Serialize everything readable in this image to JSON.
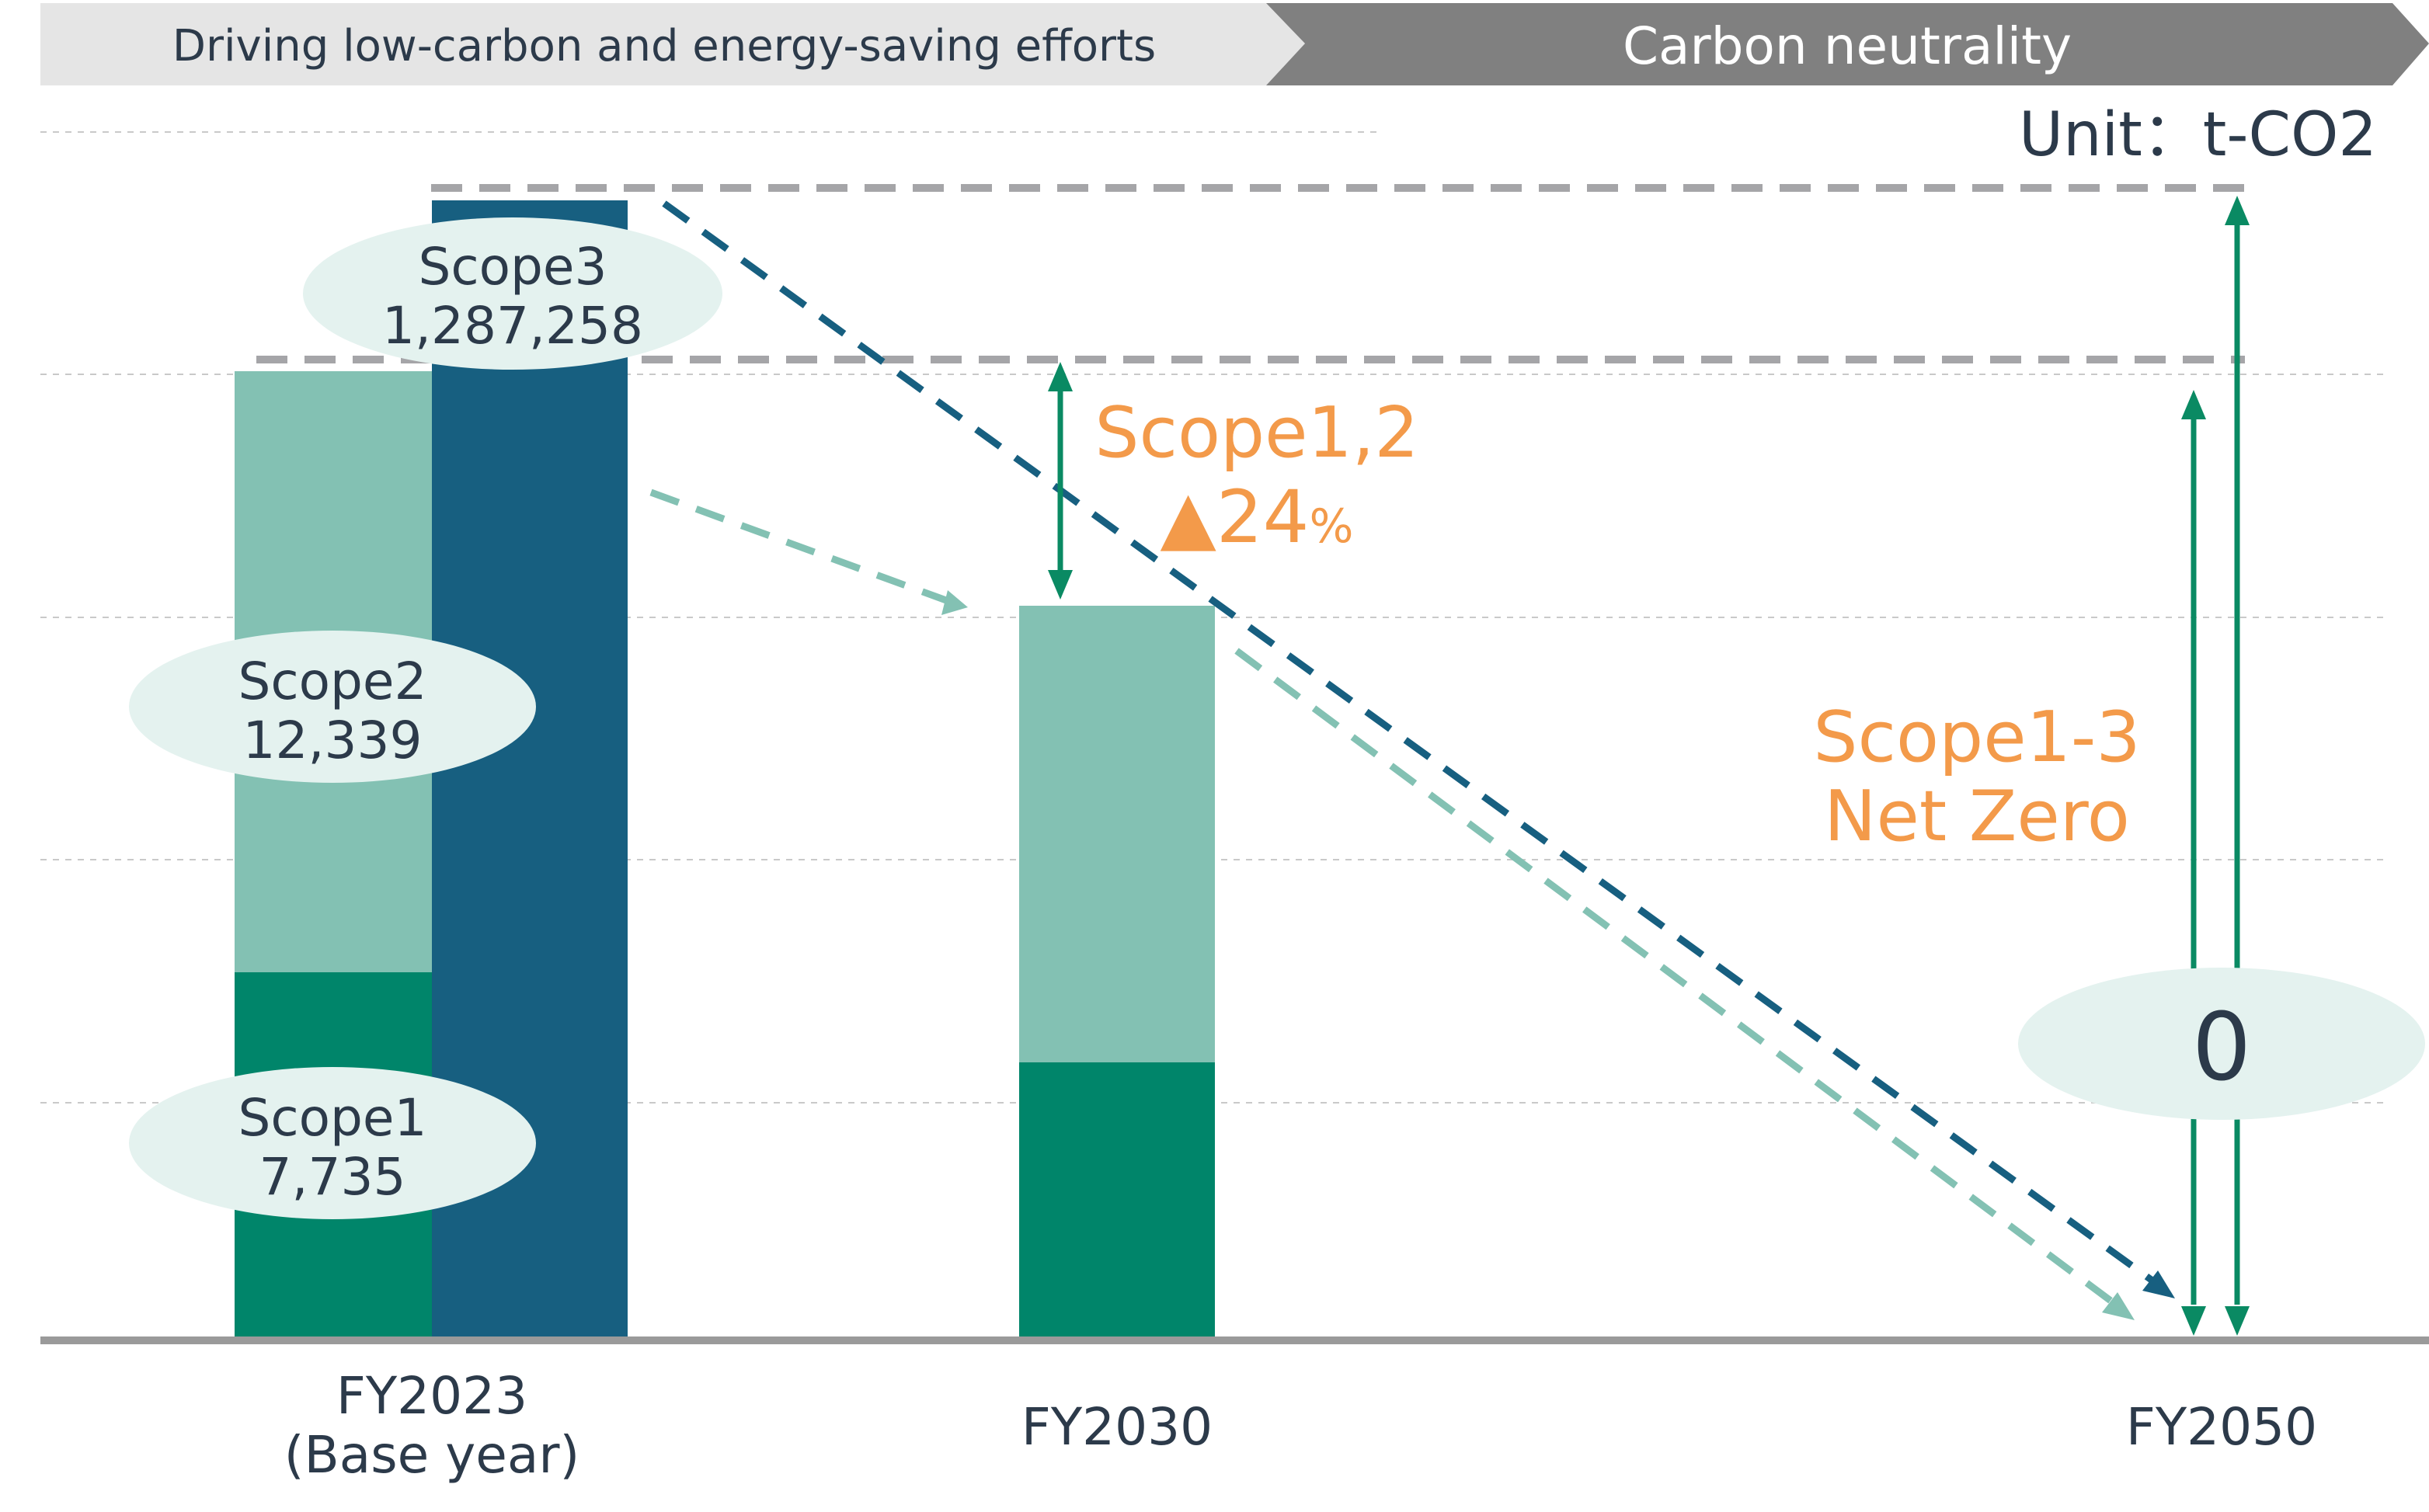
{
  "header": {
    "left_label": "Driving low-carbon and energy-saving efforts",
    "right_label": "Carbon neutrality"
  },
  "unit_label": "Unit：t-CO2",
  "chart_data": {
    "type": "bar",
    "stacked": true,
    "categories": [
      "FY2023\n(Base year)",
      "FY2030",
      "FY2050"
    ],
    "category_lines": [
      [
        "FY2023",
        "(Base year)"
      ],
      [
        "FY2030"
      ],
      [
        "FY2050"
      ]
    ],
    "series": [
      {
        "name": "Scope1",
        "values": [
          7735,
          5634,
          0
        ]
      },
      {
        "name": "Scope2",
        "values": [
          12339,
          9650,
          0
        ]
      },
      {
        "name": "Scope3",
        "values": [
          1287258,
          null,
          0
        ]
      }
    ],
    "scope12_group_note": "FY2023 Scope1+2 bar is a separate column from the Scope3 column",
    "colors": {
      "scope1": "#00856a",
      "scope2": "#83c1b3",
      "scope3": "#175f80",
      "accent": "#f39a4a",
      "arrow": "#0a8a63",
      "bubble": "#e4f2ef",
      "header_left": "#e5e5e5",
      "header_right": "#808080"
    },
    "bubbles": [
      {
        "label": "Scope3",
        "value": "1,287,258"
      },
      {
        "label": "Scope2",
        "value": "12,339"
      },
      {
        "label": "Scope1",
        "value": "7,735"
      }
    ],
    "annotations": {
      "scope12_title": "Scope1,2",
      "scope12_reduction": "▲24",
      "scope12_percent": "%",
      "netzero_line1": "Scope1-3",
      "netzero_line2": "Net Zero",
      "zero_value": "0"
    },
    "grid": true,
    "legend": "none"
  }
}
